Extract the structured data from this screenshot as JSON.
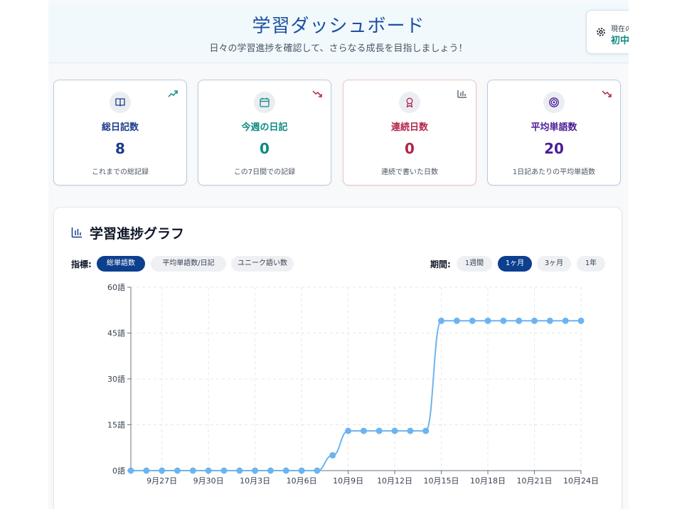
{
  "header": {
    "title": "学習ダッシュボード",
    "subtitle": "日々の学習進捗を確認して、さらなる成長を目指しましょう！",
    "level_label": "現在の",
    "level_value": "初中"
  },
  "stats": [
    {
      "label": "総日記数",
      "value": "8",
      "desc": "これまでの総記録",
      "icon": "book-icon",
      "trend": "trend-up-icon",
      "color": "#1e3a8a",
      "trend_color": "#0f8a82"
    },
    {
      "label": "今週の日記",
      "value": "0",
      "desc": "この7日間での記録",
      "icon": "calendar-icon",
      "trend": "trend-down-icon",
      "color": "#0f8a82",
      "trend_color": "#b3254a"
    },
    {
      "label": "連続日数",
      "value": "0",
      "desc": "連続で書いた日数",
      "icon": "award-icon",
      "trend": "bar-chart-icon",
      "color": "#b3254a",
      "trend_color": "#4b5563"
    },
    {
      "label": "平均単語数",
      "value": "20",
      "desc": "1日記あたりの平均単語数",
      "icon": "target-icon",
      "trend": "trend-down-icon",
      "color": "#4c1d95",
      "trend_color": "#b3254a"
    }
  ],
  "chart_section": {
    "title": "学習進捗グラフ",
    "metric_label": "指標:",
    "metrics": [
      "総単語数",
      "平均単語数/日記",
      "ユニーク語い数"
    ],
    "metric_selected": "総単語数",
    "period_label": "期間:",
    "periods": [
      "1週間",
      "1ヶ月",
      "3ヶ月",
      "1年"
    ],
    "period_selected": "1ヶ月"
  },
  "colors": {
    "accent": "#0d3f8f",
    "line": "#6cb4f0"
  },
  "chart_data": {
    "type": "line",
    "x": [
      "9月25日",
      "9月26日",
      "9月27日",
      "9月28日",
      "9月29日",
      "9月30日",
      "10月1日",
      "10月2日",
      "10月3日",
      "10月4日",
      "10月5日",
      "10月6日",
      "10月7日",
      "10月8日",
      "10月9日",
      "10月10日",
      "10月11日",
      "10月12日",
      "10月13日",
      "10月14日",
      "10月15日",
      "10月16日",
      "10月17日",
      "10月18日",
      "10月19日",
      "10月20日",
      "10月21日",
      "10月22日",
      "10月23日",
      "10月24日"
    ],
    "x_tick_labels": [
      "9月27日",
      "9月30日",
      "10月3日",
      "10月6日",
      "10月9日",
      "10月12日",
      "10月15日",
      "10月18日",
      "10月21日",
      "10月24日"
    ],
    "series": [
      {
        "values": [
          0,
          0,
          0,
          0,
          0,
          0,
          0,
          0,
          0,
          0,
          0,
          0,
          0,
          5,
          13,
          13,
          13,
          13,
          13,
          13,
          49,
          49,
          49,
          49,
          49,
          49,
          49,
          49,
          49,
          49
        ]
      }
    ],
    "y_ticks": [
      "0語",
      "15語",
      "30語",
      "45語",
      "60語"
    ],
    "ylim": [
      0,
      60
    ],
    "grid": true
  }
}
